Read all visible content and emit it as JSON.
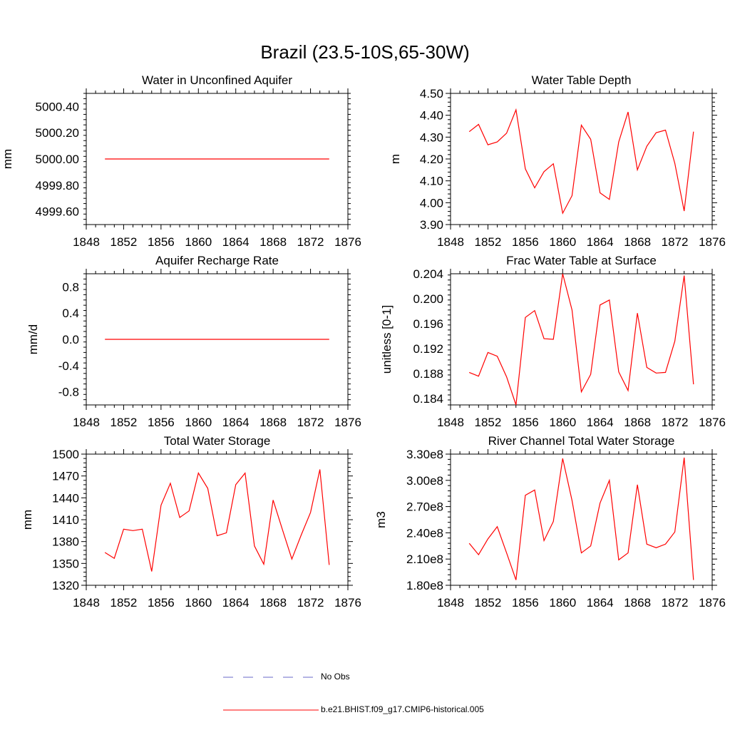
{
  "suptitle": "Brazil (23.5-10S,65-30W)",
  "colors": {
    "model_line": "#ff0000",
    "obs_line": "#6a6ac8",
    "axis": "#000000"
  },
  "legend": {
    "obs_label": "No Obs",
    "model_label": "b.e21.BHIST.f09_g17.CMIP6-historical.005"
  },
  "chart_data": [
    {
      "type": "line",
      "title": "Water in Unconfined Aquifer",
      "ylabel": "mm",
      "xlim": [
        1848,
        1876
      ],
      "ylim": [
        4999.5,
        5000.5
      ],
      "xticks": [
        1848,
        1852,
        1856,
        1860,
        1864,
        1868,
        1872,
        1876
      ],
      "yticks": [
        4999.6,
        4999.8,
        5000.0,
        5000.2,
        5000.4
      ],
      "yticklabels": [
        "4999.60",
        "4999.80",
        "5000.00",
        "5000.20",
        "5000.40"
      ],
      "x": [
        1850,
        1874
      ],
      "y": [
        5000.0,
        5000.0
      ]
    },
    {
      "type": "line",
      "title": "Water Table Depth",
      "ylabel": "m",
      "xlim": [
        1848,
        1876
      ],
      "ylim": [
        3.9,
        4.5
      ],
      "xticks": [
        1848,
        1852,
        1856,
        1860,
        1864,
        1868,
        1872,
        1876
      ],
      "yticks": [
        3.9,
        4.0,
        4.1,
        4.2,
        4.3,
        4.4,
        4.5
      ],
      "yticklabels": [
        "3.90",
        "4.00",
        "4.10",
        "4.20",
        "4.30",
        "4.40",
        "4.50"
      ],
      "x": [
        1850,
        1851,
        1852,
        1853,
        1854,
        1855,
        1856,
        1857,
        1858,
        1859,
        1860,
        1861,
        1862,
        1863,
        1864,
        1865,
        1866,
        1867,
        1868,
        1869,
        1870,
        1871,
        1872,
        1873,
        1874
      ],
      "y": [
        4.325,
        4.358,
        4.265,
        4.278,
        4.318,
        4.425,
        4.155,
        4.068,
        4.142,
        4.178,
        3.952,
        4.032,
        4.355,
        4.29,
        4.045,
        4.015,
        4.278,
        4.415,
        4.15,
        4.258,
        4.32,
        4.332,
        4.18,
        3.962,
        4.325
      ]
    },
    {
      "type": "line",
      "title": "Aquifer Recharge Rate",
      "ylabel": "mm/d",
      "xlim": [
        1848,
        1876
      ],
      "ylim": [
        -1.0,
        1.0
      ],
      "xticks": [
        1848,
        1852,
        1856,
        1860,
        1864,
        1868,
        1872,
        1876
      ],
      "yticks": [
        -0.8,
        -0.4,
        0.0,
        0.4,
        0.8
      ],
      "yticklabels": [
        "-0.8",
        "-0.4",
        "0.0",
        "0.4",
        "0.8"
      ],
      "x": [
        1850,
        1874
      ],
      "y": [
        0.0,
        0.0
      ]
    },
    {
      "type": "line",
      "title": "Frac Water Table at Surface",
      "ylabel": "unitless [0-1]",
      "xlim": [
        1848,
        1876
      ],
      "ylim": [
        0.183,
        0.204
      ],
      "xticks": [
        1848,
        1852,
        1856,
        1860,
        1864,
        1868,
        1872,
        1876
      ],
      "yticks": [
        0.184,
        0.188,
        0.192,
        0.196,
        0.2,
        0.204
      ],
      "yticklabels": [
        "0.184",
        "0.188",
        "0.192",
        "0.196",
        "0.200",
        "0.204"
      ],
      "x": [
        1850,
        1851,
        1852,
        1853,
        1854,
        1855,
        1856,
        1857,
        1858,
        1859,
        1860,
        1861,
        1862,
        1863,
        1864,
        1865,
        1866,
        1867,
        1868,
        1869,
        1870,
        1871,
        1872,
        1873,
        1874
      ],
      "y": [
        0.1882,
        0.1876,
        0.1914,
        0.1908,
        0.1875,
        0.183,
        0.197,
        0.1981,
        0.1936,
        0.1935,
        0.204,
        0.1982,
        0.1851,
        0.1879,
        0.199,
        0.1998,
        0.1883,
        0.1853,
        0.1977,
        0.189,
        0.1881,
        0.1882,
        0.1932,
        0.2037,
        0.1863
      ]
    },
    {
      "type": "line",
      "title": "Total Water Storage",
      "ylabel": "mm",
      "xlim": [
        1848,
        1876
      ],
      "ylim": [
        1320,
        1500
      ],
      "xticks": [
        1848,
        1852,
        1856,
        1860,
        1864,
        1868,
        1872,
        1876
      ],
      "yticks": [
        1320,
        1350,
        1380,
        1410,
        1440,
        1470,
        1500
      ],
      "yticklabels": [
        "1320",
        "1350",
        "1380",
        "1410",
        "1440",
        "1470",
        "1500"
      ],
      "x": [
        1850,
        1851,
        1852,
        1853,
        1854,
        1855,
        1856,
        1857,
        1858,
        1859,
        1860,
        1861,
        1862,
        1863,
        1864,
        1865,
        1866,
        1867,
        1868,
        1869,
        1870,
        1871,
        1872,
        1873,
        1874
      ],
      "y": [
        1365,
        1357,
        1397,
        1395,
        1397,
        1339,
        1430,
        1460,
        1413,
        1422,
        1474,
        1453,
        1388,
        1392,
        1458,
        1474,
        1374,
        1349,
        1437,
        1396,
        1356,
        1389,
        1420,
        1479,
        1348
      ]
    },
    {
      "type": "line",
      "title": "River Channel Total Water Storage",
      "ylabel": "m3",
      "xlim": [
        1848,
        1876
      ],
      "ylim": [
        180000000.0,
        330000000.0
      ],
      "xticks": [
        1848,
        1852,
        1856,
        1860,
        1864,
        1868,
        1872,
        1876
      ],
      "yticks": [
        180000000.0,
        210000000.0,
        240000000.0,
        270000000.0,
        300000000.0,
        330000000.0
      ],
      "yticklabels": [
        "1.80e8",
        "2.10e8",
        "2.40e8",
        "2.70e8",
        "3.00e8",
        "3.30e8"
      ],
      "x": [
        1850,
        1851,
        1852,
        1853,
        1854,
        1855,
        1856,
        1857,
        1858,
        1859,
        1860,
        1861,
        1862,
        1863,
        1864,
        1865,
        1866,
        1867,
        1868,
        1869,
        1870,
        1871,
        1872,
        1873,
        1874
      ],
      "y": [
        228000000.0,
        215000000.0,
        233000000.0,
        247000000.0,
        217000000.0,
        186000000.0,
        283000000.0,
        289000000.0,
        231000000.0,
        253000000.0,
        325000000.0,
        277000000.0,
        217000000.0,
        225000000.0,
        274000000.0,
        300000000.0,
        209000000.0,
        217000000.0,
        295000000.0,
        227000000.0,
        223000000.0,
        227000000.0,
        241000000.0,
        326000000.0,
        186000000.0
      ]
    }
  ]
}
